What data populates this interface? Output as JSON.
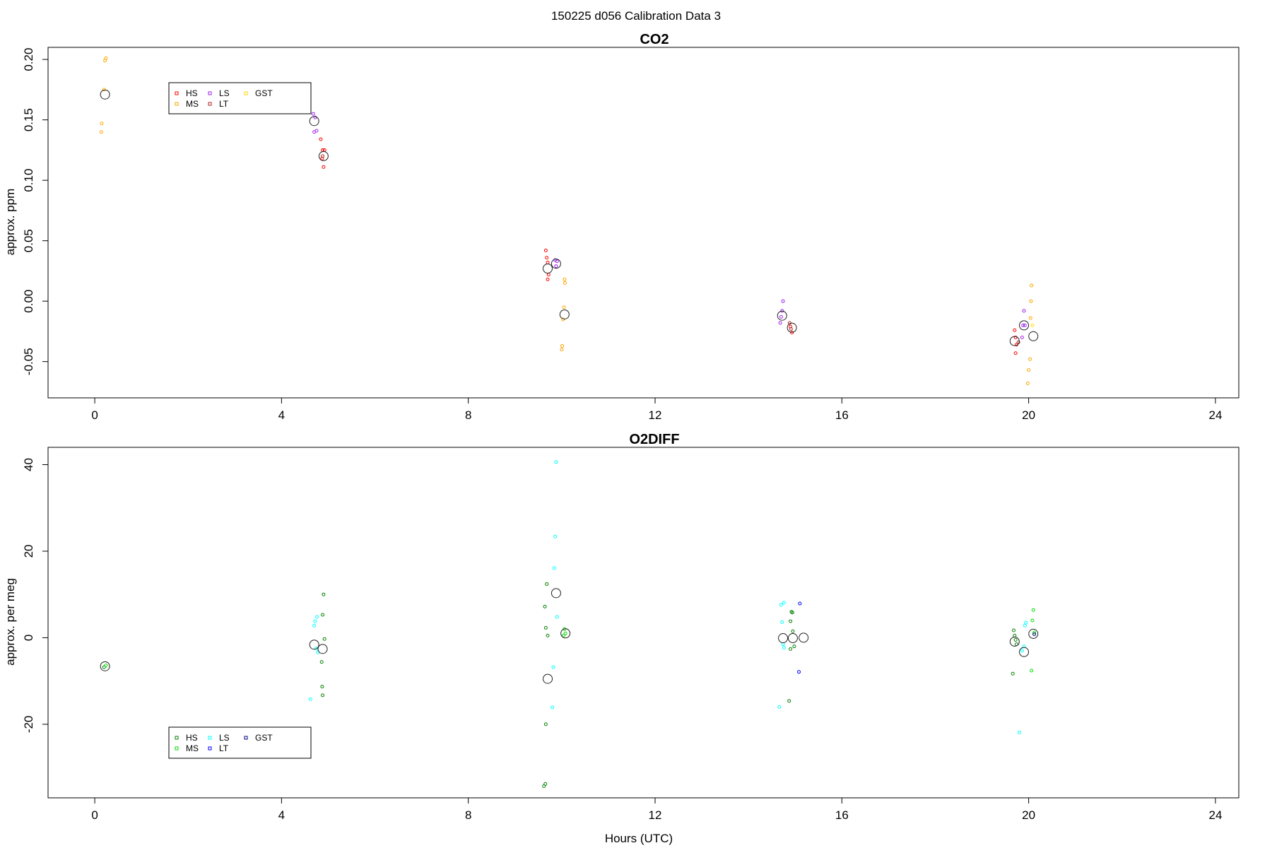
{
  "title": "150225   d056   Calibration Data 3",
  "chart_data": [
    {
      "type": "scatter",
      "title": "CO2",
      "xlabel": "",
      "ylabel": "approx. ppm",
      "xlim": [
        -1,
        24.5
      ],
      "ylim": [
        -0.08,
        0.21
      ],
      "xticks": [
        0,
        4,
        8,
        12,
        16,
        20,
        24
      ],
      "xtick_labels": [
        "0",
        "4",
        "8",
        "12",
        "16",
        "20",
        "24"
      ],
      "yticks": [
        -0.05,
        0.0,
        0.05,
        0.1,
        0.15,
        0.2
      ],
      "ytick_labels": [
        "-0.05",
        "0.00",
        "0.05",
        "0.10",
        "0.15",
        "0.20"
      ],
      "grid": false,
      "legend": {
        "placement": "top-left",
        "entries": [
          {
            "label": "HS",
            "color": "#ff0000"
          },
          {
            "label": "MS",
            "color": "#ffa500"
          },
          {
            "label": "LS",
            "color": "#a020f0"
          },
          {
            "label": "LT",
            "color": "#b22222"
          },
          {
            "label": "GST",
            "color": "#ffd700"
          }
        ]
      },
      "series": [
        {
          "name": "HS",
          "color": "#ff0000",
          "points": [
            [
              4.84,
              0.134
            ],
            [
              4.88,
              0.125
            ],
            [
              4.92,
              0.125
            ],
            [
              4.87,
              0.118
            ],
            [
              4.9,
              0.111
            ],
            [
              9.66,
              0.042
            ],
            [
              9.68,
              0.036
            ],
            [
              9.7,
              0.032
            ],
            [
              9.72,
              0.022
            ],
            [
              9.7,
              0.018
            ],
            [
              19.7,
              -0.024
            ],
            [
              19.72,
              -0.03
            ],
            [
              19.74,
              -0.036
            ],
            [
              19.72,
              -0.043
            ],
            [
              14.9,
              -0.021
            ],
            [
              14.93,
              -0.026
            ]
          ]
        },
        {
          "name": "MS",
          "color": "#ffa500",
          "points": [
            [
              0.14,
              0.14
            ],
            [
              0.15,
              0.147
            ],
            [
              0.2,
              0.175
            ],
            [
              0.22,
              0.199
            ],
            [
              0.24,
              0.201
            ],
            [
              10.06,
              0.018
            ],
            [
              10.07,
              0.015
            ],
            [
              10.05,
              -0.005
            ],
            [
              10.03,
              -0.015
            ],
            [
              10.01,
              -0.037
            ],
            [
              10.0,
              -0.04
            ],
            [
              20.06,
              0.013
            ],
            [
              20.05,
              0.0
            ],
            [
              20.04,
              -0.014
            ],
            [
              20.03,
              -0.048
            ],
            [
              20.0,
              -0.057
            ],
            [
              19.98,
              -0.068
            ]
          ]
        },
        {
          "name": "LS",
          "color": "#a020f0",
          "points": [
            [
              4.68,
              0.155
            ],
            [
              4.72,
              0.152
            ],
            [
              4.75,
              0.141
            ],
            [
              4.7,
              0.14
            ],
            [
              9.86,
              0.034
            ],
            [
              9.9,
              0.033
            ],
            [
              9.88,
              0.029
            ],
            [
              14.74,
              0.0
            ],
            [
              14.72,
              -0.008
            ],
            [
              14.7,
              -0.013
            ],
            [
              14.68,
              -0.018
            ],
            [
              19.9,
              -0.008
            ],
            [
              19.88,
              -0.02
            ],
            [
              19.86,
              -0.03
            ],
            [
              19.92,
              -0.02
            ]
          ]
        },
        {
          "name": "LT",
          "color": "#b22222",
          "points": [
            [
              4.88,
              0.12
            ],
            [
              14.88,
              -0.018
            ],
            [
              14.91,
              -0.023
            ],
            [
              19.78,
              -0.034
            ]
          ]
        },
        {
          "name": "GST",
          "color": "#ffd700",
          "points": [
            [
              20.08,
              -0.02
            ]
          ]
        }
      ],
      "means": [
        [
          0.22,
          0.171
        ],
        [
          4.7,
          0.149
        ],
        [
          4.9,
          0.12
        ],
        [
          9.7,
          0.027
        ],
        [
          9.88,
          0.031
        ],
        [
          10.06,
          -0.011
        ],
        [
          14.72,
          -0.012
        ],
        [
          14.93,
          -0.022
        ],
        [
          19.7,
          -0.033
        ],
        [
          19.9,
          -0.02
        ],
        [
          20.1,
          -0.029
        ]
      ]
    },
    {
      "type": "scatter",
      "title": "O2DIFF",
      "xlabel": "Hours (UTC)",
      "ylabel": "approx. per meg",
      "xlim": [
        -1,
        24.5
      ],
      "ylim": [
        -37,
        44
      ],
      "xticks": [
        0,
        4,
        8,
        12,
        16,
        20,
        24
      ],
      "xtick_labels": [
        "0",
        "4",
        "8",
        "12",
        "16",
        "20",
        "24"
      ],
      "yticks": [
        -20,
        0,
        20,
        40
      ],
      "ytick_labels": [
        "-20",
        "0",
        "20",
        "40"
      ],
      "grid": false,
      "legend": {
        "placement": "bottom-left",
        "entries": [
          {
            "label": "HS",
            "color": "#008000"
          },
          {
            "label": "MS",
            "color": "#00dd00"
          },
          {
            "label": "LS",
            "color": "#00ffff"
          },
          {
            "label": "LT",
            "color": "#0000ff"
          },
          {
            "label": "GST",
            "color": "#000080"
          }
        ]
      },
      "series": [
        {
          "name": "HS",
          "color": "#008000",
          "points": [
            [
              0.2,
              -6.8
            ],
            [
              4.9,
              10.0
            ],
            [
              4.88,
              5.3
            ],
            [
              4.92,
              -0.3
            ],
            [
              4.86,
              -5.6
            ],
            [
              4.87,
              -11.3
            ],
            [
              4.88,
              -13.3
            ],
            [
              9.68,
              12.4
            ],
            [
              9.64,
              7.2
            ],
            [
              9.66,
              2.3
            ],
            [
              9.7,
              0.5
            ],
            [
              9.66,
              -20.0
            ],
            [
              9.62,
              -34.3
            ],
            [
              9.65,
              -33.8
            ],
            [
              14.92,
              6.0
            ],
            [
              14.94,
              5.8
            ],
            [
              14.9,
              3.8
            ],
            [
              14.95,
              1.5
            ],
            [
              14.98,
              -2.0
            ],
            [
              14.9,
              -2.6
            ],
            [
              14.87,
              -14.6
            ],
            [
              19.68,
              1.7
            ],
            [
              19.7,
              0.5
            ],
            [
              19.72,
              -0.5
            ],
            [
              19.74,
              -1.5
            ],
            [
              19.66,
              -8.3
            ]
          ]
        },
        {
          "name": "MS",
          "color": "#00dd00",
          "points": [
            [
              0.24,
              -6.4
            ],
            [
              10.06,
              2.0
            ],
            [
              10.08,
              1.0
            ],
            [
              10.04,
              0.5
            ],
            [
              20.1,
              6.4
            ],
            [
              20.08,
              4.0
            ],
            [
              20.06,
              -7.6
            ],
            [
              20.12,
              1.2
            ]
          ]
        },
        {
          "name": "LS",
          "color": "#00ffff",
          "points": [
            [
              4.76,
              4.8
            ],
            [
              4.72,
              3.8
            ],
            [
              4.7,
              2.8
            ],
            [
              4.74,
              -2.5
            ],
            [
              4.78,
              -3.4
            ],
            [
              4.62,
              -14.2
            ],
            [
              9.88,
              40.6
            ],
            [
              9.86,
              23.4
            ],
            [
              9.84,
              16.1
            ],
            [
              9.9,
              4.8
            ],
            [
              9.82,
              -6.8
            ],
            [
              9.8,
              -16.1
            ],
            [
              14.76,
              8.1
            ],
            [
              14.7,
              7.6
            ],
            [
              14.72,
              3.6
            ],
            [
              14.74,
              -1.5
            ],
            [
              14.76,
              -2.3
            ],
            [
              14.66,
              -16.0
            ],
            [
              19.94,
              3.5
            ],
            [
              19.92,
              2.8
            ],
            [
              19.9,
              -2.0
            ],
            [
              19.86,
              -3.0
            ],
            [
              19.8,
              -21.9
            ]
          ]
        },
        {
          "name": "LT",
          "color": "#0000ff",
          "points": [
            [
              15.1,
              7.9
            ],
            [
              15.08,
              -7.9
            ]
          ]
        },
        {
          "name": "GST",
          "color": "#000080",
          "points": [
            [
              20.12,
              0.8
            ]
          ]
        }
      ],
      "means": [
        [
          0.22,
          -6.6
        ],
        [
          4.7,
          -1.6
        ],
        [
          4.88,
          -2.6
        ],
        [
          9.7,
          -9.5
        ],
        [
          9.88,
          10.3
        ],
        [
          10.08,
          1.0
        ],
        [
          14.74,
          -0.1
        ],
        [
          14.95,
          -0.1
        ],
        [
          15.18,
          0.0
        ],
        [
          19.7,
          -0.9
        ],
        [
          19.9,
          -3.3
        ],
        [
          20.1,
          0.9
        ]
      ]
    }
  ]
}
